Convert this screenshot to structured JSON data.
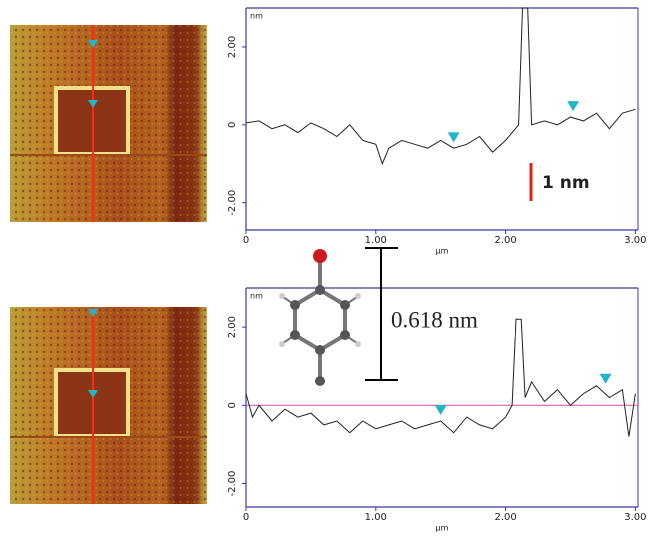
{
  "chart_data": [
    {
      "type": "line",
      "xlabel": "µm",
      "ylabel": "nm",
      "color": "#222222",
      "x": [
        0,
        0.1,
        0.2,
        0.3,
        0.4,
        0.5,
        0.6,
        0.7,
        0.8,
        0.9,
        1.0,
        1.05,
        1.1,
        1.2,
        1.3,
        1.4,
        1.5,
        1.6,
        1.7,
        1.8,
        1.9,
        2.0,
        2.1,
        2.13,
        2.17,
        2.2,
        2.3,
        2.4,
        2.5,
        2.6,
        2.7,
        2.8,
        2.9,
        3.0
      ],
      "values": [
        0.05,
        0.1,
        -0.1,
        0.0,
        -0.2,
        0.05,
        -0.1,
        -0.3,
        0.0,
        -0.4,
        -0.5,
        -1.0,
        -0.6,
        -0.4,
        -0.5,
        -0.6,
        -0.4,
        -0.6,
        -0.5,
        -0.3,
        -0.7,
        -0.4,
        0.0,
        3.0,
        3.0,
        0.0,
        0.1,
        0.0,
        0.2,
        0.1,
        0.3,
        -0.1,
        0.3,
        0.4
      ],
      "markers": {
        "x": [
          1.6,
          2.52
        ],
        "values": [
          -0.5,
          0.3
        ],
        "color": "#22b5c8"
      },
      "xlim": [
        0,
        3.02
      ],
      "ylim": [
        -2.7,
        3.0
      ],
      "xticks": [
        0,
        {
          "value": 1,
          "label": "1.00"
        },
        {
          "value": 2,
          "label": "2.00"
        },
        {
          "value": 3,
          "label": "3.00"
        }
      ],
      "yticks": [
        {
          "value": 2,
          "label": "2.00"
        },
        0,
        {
          "value": -2,
          "label": "-2.00"
        }
      ],
      "annotation": "1 nm"
    },
    {
      "type": "line",
      "xlabel": "µm",
      "ylabel": "nm",
      "color": "#222222",
      "x": [
        0,
        0.05,
        0.1,
        0.2,
        0.3,
        0.4,
        0.5,
        0.6,
        0.7,
        0.8,
        0.9,
        1.0,
        1.1,
        1.2,
        1.3,
        1.4,
        1.5,
        1.6,
        1.7,
        1.8,
        1.9,
        2.0,
        2.05,
        2.08,
        2.12,
        2.15,
        2.2,
        2.3,
        2.4,
        2.5,
        2.6,
        2.7,
        2.8,
        2.9,
        2.95,
        3.0
      ],
      "values": [
        0.3,
        -0.3,
        0.0,
        -0.4,
        -0.1,
        -0.3,
        -0.2,
        -0.5,
        -0.4,
        -0.7,
        -0.4,
        -0.6,
        -0.5,
        -0.4,
        -0.6,
        -0.5,
        -0.4,
        -0.7,
        -0.3,
        -0.5,
        -0.6,
        -0.3,
        0.0,
        2.2,
        2.2,
        0.2,
        0.6,
        0.1,
        0.4,
        0.0,
        0.3,
        0.5,
        0.2,
        0.4,
        -0.8,
        0.3
      ],
      "reference_line": {
        "value": 0,
        "color": "#e060a0"
      },
      "markers": {
        "x": [
          1.5,
          2.77
        ],
        "values": [
          -0.3,
          0.5
        ],
        "color": "#22b5c8"
      },
      "xlim": [
        0,
        3.02
      ],
      "ylim": [
        -2.6,
        3.0
      ],
      "xticks": [
        0,
        {
          "value": 1,
          "label": "1.00"
        },
        {
          "value": 2,
          "label": "2.00"
        },
        {
          "value": 3,
          "label": "3.00"
        }
      ],
      "yticks": [
        {
          "value": 2,
          "label": "2.00"
        },
        0,
        {
          "value": -2,
          "label": "-2.00"
        }
      ],
      "annotation": "0.618 nm"
    }
  ]
}
